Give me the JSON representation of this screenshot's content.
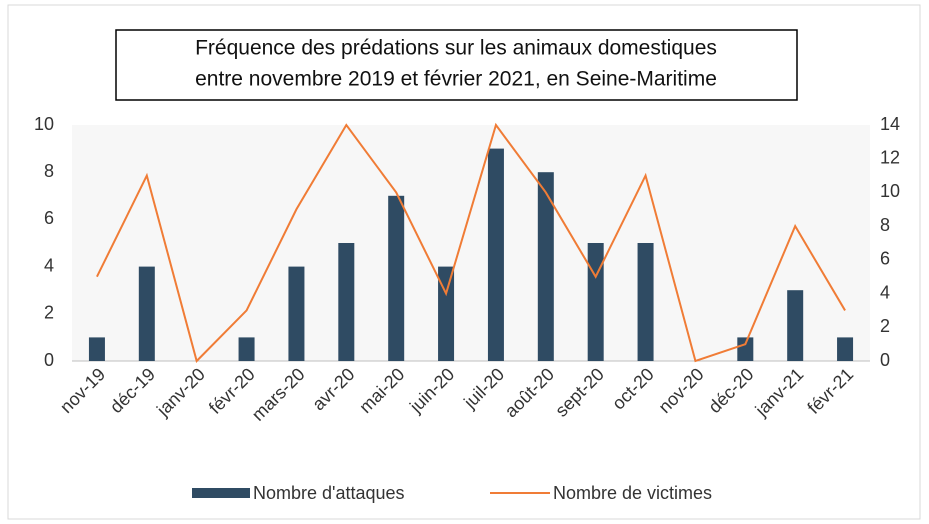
{
  "chart_data": {
    "type": "bar-line",
    "title": [
      "Fréquence des prédations sur les animaux domestiques",
      "entre novembre 2019 et février 2021, en Seine-Maritime"
    ],
    "categories": [
      "nov-19",
      "déc-19",
      "janv-20",
      "févr-20",
      "mars-20",
      "avr-20",
      "mai-20",
      "juin-20",
      "juil-20",
      "août-20",
      "sept-20",
      "oct-20",
      "nov-20",
      "déc-20",
      "janv-21",
      "févr-21"
    ],
    "series": [
      {
        "name": "Nombre d'attaques",
        "type": "bar",
        "color": "#2f4b63",
        "values": [
          1,
          4,
          0,
          1,
          4,
          5,
          7,
          4,
          9,
          8,
          5,
          5,
          0,
          1,
          3,
          1
        ]
      },
      {
        "name": "Nombre de victimes",
        "type": "line",
        "axis": "y2",
        "color": "#f07c36",
        "values": [
          5,
          11,
          0,
          3,
          9,
          14,
          10,
          4,
          14,
          10,
          5,
          11,
          0,
          1,
          8,
          3
        ]
      }
    ],
    "ylim": [
      0,
      10
    ],
    "yticks": [
      0,
      2,
      4,
      6,
      8,
      10
    ],
    "y2lim": [
      0,
      14
    ],
    "y2ticks": [
      0,
      2,
      4,
      6,
      8,
      10,
      12,
      14
    ],
    "grid": false,
    "legend": "bottom"
  }
}
